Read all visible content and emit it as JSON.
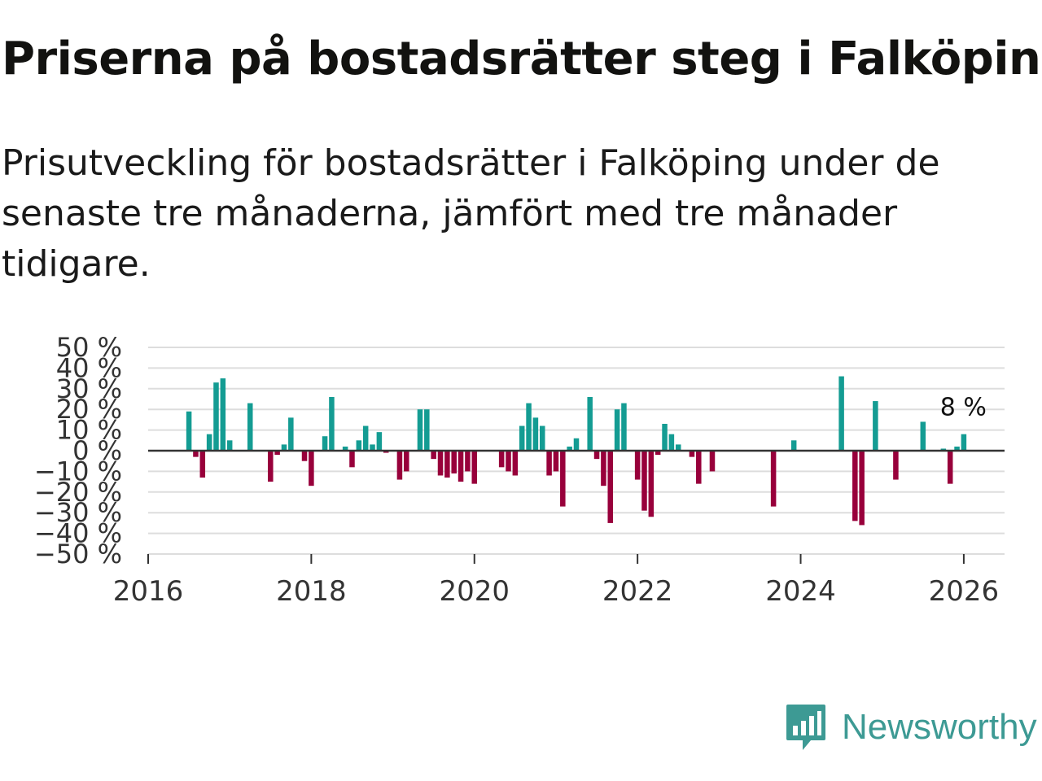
{
  "title": "Priserna på bostadsrätter steg i Falköping",
  "subtitle": "Prisutveckling för bostadsrätter i Falköping under de senaste tre månaderna, jämfört med tre månader tidigare.",
  "brand": {
    "name": "Newsworthy",
    "icon": "newsworthy-logo-icon",
    "color": "#3d9a94"
  },
  "colors": {
    "positive": "#149c93",
    "negative": "#98003b",
    "grid": "#dddddd",
    "zero_line": "#333333"
  },
  "chart_data": {
    "type": "bar",
    "title": "Priserna på bostadsrätter steg i Falköping",
    "xlabel": "",
    "ylabel": "",
    "ylim": [
      -50,
      50
    ],
    "xlim": [
      2016,
      2026.5
    ],
    "x_ticks": [
      2016,
      2018,
      2020,
      2022,
      2024,
      2026
    ],
    "x_tick_labels": [
      "2016",
      "2018",
      "2020",
      "2022",
      "2024",
      "2026"
    ],
    "y_ticks": [
      50,
      40,
      30,
      20,
      10,
      0,
      -10,
      -20,
      -30,
      -40,
      -50
    ],
    "y_tick_labels": [
      "50 %",
      "40 %",
      "30 %",
      "20 %",
      "10 %",
      "0 %",
      "−10 %",
      "−20 %",
      "−30 %",
      "−40 %",
      "−50 %"
    ],
    "last_label": "8 %",
    "series": [
      {
        "name": "Prisutveckling",
        "points": [
          {
            "x": "2016-07",
            "y": 19
          },
          {
            "x": "2016-08",
            "y": -3
          },
          {
            "x": "2016-09",
            "y": -13
          },
          {
            "x": "2016-10",
            "y": 8
          },
          {
            "x": "2016-11",
            "y": 33
          },
          {
            "x": "2016-12",
            "y": 35
          },
          {
            "x": "2017-01",
            "y": 5
          },
          {
            "x": "2017-04",
            "y": 23
          },
          {
            "x": "2017-07",
            "y": -15
          },
          {
            "x": "2017-08",
            "y": -2
          },
          {
            "x": "2017-09",
            "y": 3
          },
          {
            "x": "2017-10",
            "y": 16
          },
          {
            "x": "2017-12",
            "y": -5
          },
          {
            "x": "2018-01",
            "y": -17
          },
          {
            "x": "2018-03",
            "y": 7
          },
          {
            "x": "2018-04",
            "y": 26
          },
          {
            "x": "2018-06",
            "y": 2
          },
          {
            "x": "2018-07",
            "y": -8
          },
          {
            "x": "2018-08",
            "y": 5
          },
          {
            "x": "2018-09",
            "y": 12
          },
          {
            "x": "2018-10",
            "y": 3
          },
          {
            "x": "2018-11",
            "y": 9
          },
          {
            "x": "2018-12",
            "y": -1
          },
          {
            "x": "2019-02",
            "y": -14
          },
          {
            "x": "2019-03",
            "y": -10
          },
          {
            "x": "2019-05",
            "y": 20
          },
          {
            "x": "2019-06",
            "y": 20
          },
          {
            "x": "2019-07",
            "y": -4
          },
          {
            "x": "2019-08",
            "y": -12
          },
          {
            "x": "2019-09",
            "y": -13
          },
          {
            "x": "2019-10",
            "y": -11
          },
          {
            "x": "2019-11",
            "y": -15
          },
          {
            "x": "2019-12",
            "y": -10
          },
          {
            "x": "2020-01",
            "y": -16
          },
          {
            "x": "2020-05",
            "y": -8
          },
          {
            "x": "2020-06",
            "y": -10
          },
          {
            "x": "2020-07",
            "y": -12
          },
          {
            "x": "2020-08",
            "y": 12
          },
          {
            "x": "2020-09",
            "y": 23
          },
          {
            "x": "2020-10",
            "y": 16
          },
          {
            "x": "2020-11",
            "y": 12
          },
          {
            "x": "2020-12",
            "y": -12
          },
          {
            "x": "2021-01",
            "y": -10
          },
          {
            "x": "2021-02",
            "y": -27
          },
          {
            "x": "2021-03",
            "y": 2
          },
          {
            "x": "2021-04",
            "y": 6
          },
          {
            "x": "2021-06",
            "y": 26
          },
          {
            "x": "2021-07",
            "y": -4
          },
          {
            "x": "2021-08",
            "y": -17
          },
          {
            "x": "2021-09",
            "y": -35
          },
          {
            "x": "2021-10",
            "y": 20
          },
          {
            "x": "2021-11",
            "y": 23
          },
          {
            "x": "2022-01",
            "y": -14
          },
          {
            "x": "2022-02",
            "y": -29
          },
          {
            "x": "2022-03",
            "y": -32
          },
          {
            "x": "2022-04",
            "y": -2
          },
          {
            "x": "2022-05",
            "y": 13
          },
          {
            "x": "2022-06",
            "y": 8
          },
          {
            "x": "2022-07",
            "y": 3
          },
          {
            "x": "2022-09",
            "y": -3
          },
          {
            "x": "2022-10",
            "y": -16
          },
          {
            "x": "2022-12",
            "y": -10
          },
          {
            "x": "2023-09",
            "y": -27
          },
          {
            "x": "2023-12",
            "y": 5
          },
          {
            "x": "2024-07",
            "y": 36
          },
          {
            "x": "2024-09",
            "y": -34
          },
          {
            "x": "2024-10",
            "y": -36
          },
          {
            "x": "2024-12",
            "y": 24
          },
          {
            "x": "2025-03",
            "y": -14
          },
          {
            "x": "2025-07",
            "y": 14
          },
          {
            "x": "2025-10",
            "y": 1
          },
          {
            "x": "2025-11",
            "y": -16
          },
          {
            "x": "2025-12",
            "y": 2
          },
          {
            "x": "2026-01",
            "y": 8
          }
        ]
      }
    ]
  }
}
